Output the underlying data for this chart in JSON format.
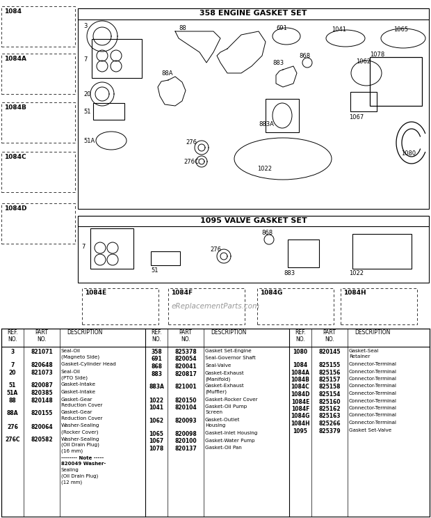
{
  "title": "358 ENGINE GASKET SET",
  "title2": "1095 VALVE GASKET SET",
  "bg_color": "#ffffff",
  "watermark": "eReplacementParts.com",
  "col1_data": [
    [
      "3",
      "821071",
      "Seal-Oil\n(Magneto Side)"
    ],
    [
      "7",
      "820648",
      "Gasket-Cylinder Head"
    ],
    [
      "20",
      "821073",
      "Seal-Oil\n(PTO Side)"
    ],
    [
      "51",
      "820087",
      "Gasket-Intake"
    ],
    [
      "51A",
      "820385",
      "Gasket-Intake"
    ],
    [
      "88",
      "820148",
      "Gasket-Gear\nReduction Cover"
    ],
    [
      "88A",
      "820155",
      "Gasket-Gear\nReduction Cover"
    ],
    [
      "276",
      "820064",
      "Washer-Sealing\n(Rocker Cover)"
    ],
    [
      "276C",
      "820582",
      "Washer-Sealing\n(Oil Drain Plug)\n(16 mm)"
    ],
    [
      "",
      "",
      "-------- Note -----\n820049 Washer-\nSealing\n(Oil Drain Plug)\n(12 mm)"
    ]
  ],
  "col2_data": [
    [
      "358",
      "825378",
      "Gasket Set-Engine"
    ],
    [
      "691",
      "820054",
      "Seal-Governor Shaft"
    ],
    [
      "868",
      "820041",
      "Seal-Valve"
    ],
    [
      "883",
      "820817",
      "Gasket-Exhaust\n(Manifold)"
    ],
    [
      "883A",
      "821001",
      "Gasket-Exhaust\n(Muffler)"
    ],
    [
      "1022",
      "820150",
      "Gasket-Rocker Cover"
    ],
    [
      "1041",
      "820104",
      "Gasket-Oil Pump\nScreen"
    ],
    [
      "1062",
      "820093",
      "Gasket-Outlet\nHousing"
    ],
    [
      "1065",
      "820098",
      "Gasket-Inlet Housing"
    ],
    [
      "1067",
      "820100",
      "Gasket-Water Pump"
    ],
    [
      "1078",
      "820137",
      "Gasket-Oil Pan"
    ]
  ],
  "col3_data": [
    [
      "1080",
      "820145",
      "Gasket-Seal\nRetainer"
    ],
    [
      "1084",
      "825155",
      "Connector-Terminal"
    ],
    [
      "1084A",
      "825156",
      "Connector-Terminal"
    ],
    [
      "1084B",
      "825157",
      "Connector-Terminal"
    ],
    [
      "1084C",
      "825158",
      "Connector-Terminal"
    ],
    [
      "1084D",
      "825154",
      "Connector-Terminal"
    ],
    [
      "1084E",
      "825160",
      "Connector-Terminal"
    ],
    [
      "1084F",
      "825162",
      "Connector-Terminal"
    ],
    [
      "1084G",
      "825163",
      "Connector-Terminal"
    ],
    [
      "1084H",
      "825266",
      "Connector-Terminal"
    ],
    [
      "1095",
      "825379",
      "Gasket Set-Valve"
    ]
  ]
}
